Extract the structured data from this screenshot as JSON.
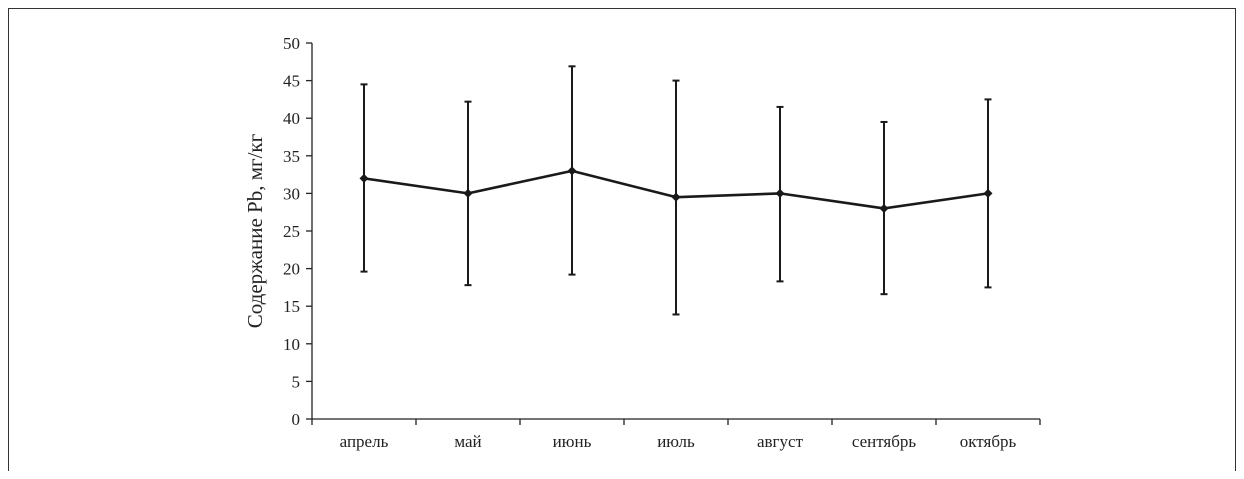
{
  "chart_data": {
    "type": "line",
    "title": "",
    "xlabel": "",
    "ylabel": "Содержание Pb, мг/кг",
    "categories": [
      "апрель",
      "май",
      "июнь",
      "июль",
      "август",
      "сентябрь",
      "октябрь"
    ],
    "series": [
      {
        "values": [
          32,
          30,
          33,
          29.5,
          30,
          28,
          30
        ],
        "error_upper": [
          44.5,
          42.2,
          46.9,
          45.0,
          41.5,
          39.5,
          42.5
        ],
        "error_lower": [
          19.6,
          17.8,
          19.2,
          13.9,
          18.3,
          16.6,
          17.5
        ]
      }
    ],
    "ylim": [
      0,
      50
    ],
    "yticks": [
      0,
      5,
      10,
      15,
      20,
      25,
      30,
      35,
      40,
      45,
      50
    ],
    "grid": false,
    "marker": "diamond",
    "line_color": "#1a1a1a"
  }
}
